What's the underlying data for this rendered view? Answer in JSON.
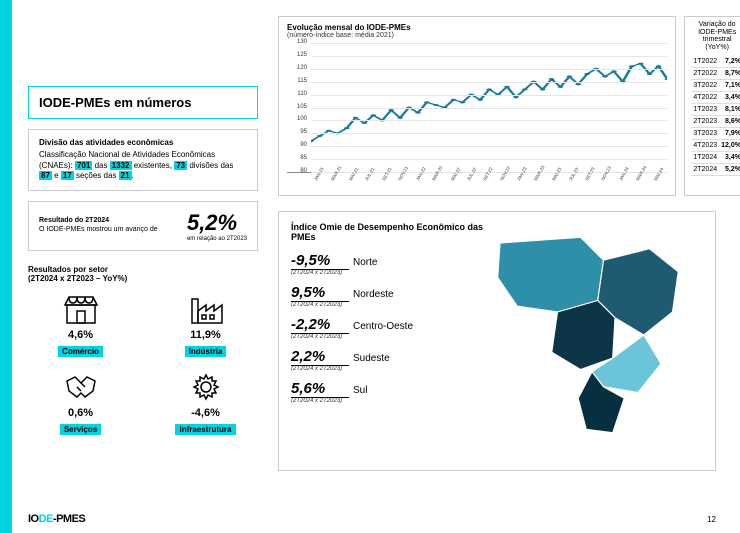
{
  "title": "IODE-PMEs em números",
  "desc": {
    "subtitle": "Divisão das atividades econômicas",
    "pre": "Classificação Nacional de Atividades Econômicas (CNAEs): ",
    "n1": "701",
    "mid1": " das ",
    "n2": "1332",
    "mid2": " existentes, ",
    "n3": "73",
    "mid3": " divisões das ",
    "n4": "87",
    "mid4": " e ",
    "n5": "17",
    "mid5": " seções das ",
    "n6": "21",
    "end": "."
  },
  "result": {
    "label": "Resultado do 2T2024",
    "text": "O IODE-PMEs mostrou um avanço de",
    "value": "5,2%",
    "sub": "em relação ao 2T2023"
  },
  "sectors": {
    "title": "Resultados por setor",
    "subtitle": "(2T2024 x 2T2023 – YoY%)",
    "items": [
      {
        "name": "Comércio",
        "value": "4,6%",
        "icon": "store"
      },
      {
        "name": "Indústria",
        "value": "11,9%",
        "icon": "factory"
      },
      {
        "name": "Serviços",
        "value": "0,6%",
        "icon": "handshake"
      },
      {
        "name": "Infraestrutura",
        "value": "-4,6%",
        "icon": "gear"
      }
    ]
  },
  "chart": {
    "title": "Evolução mensal do IODE-PMEs",
    "subtitle": "(número-índice base: média 2021)",
    "ylim": [
      80,
      130
    ],
    "ytick_step": 5,
    "line_color": "#1a7a9e",
    "marker_color": "#1a7a9e",
    "grid_color": "#e5e5e5",
    "x_labels": [
      "JAN.21",
      "MAR.21",
      "MAI.21",
      "JUL.21",
      "SET.21",
      "NOV.21",
      "JAN.22",
      "MAR.22",
      "MAI.22",
      "JUL.22",
      "SET.22",
      "NOV.22",
      "JAN.23",
      "MAR.23",
      "MAI.23",
      "JUL.23",
      "SET.23",
      "NOV.23",
      "JAN.24",
      "MAR.24",
      "MAI.24"
    ],
    "values": [
      92,
      94,
      96,
      95,
      97,
      101,
      99,
      102,
      100,
      104,
      101,
      105,
      103,
      107,
      106,
      105,
      108,
      107,
      110,
      108,
      112,
      110,
      113,
      109,
      112,
      115,
      112,
      116,
      113,
      117,
      114,
      118,
      120,
      117,
      119,
      115,
      121,
      122,
      118,
      121,
      116
    ]
  },
  "table": {
    "title": "Variação do IODE-PMEs trimestral (YoY%)",
    "rows": [
      {
        "q": "1T2022",
        "v": "7,2%"
      },
      {
        "q": "2T2022",
        "v": "8,7%"
      },
      {
        "q": "3T2022",
        "v": "7,1%"
      },
      {
        "q": "4T2022",
        "v": "3,4%"
      },
      {
        "q": "1T2023",
        "v": "8,1%"
      },
      {
        "q": "2T2023",
        "v": "8,6%"
      },
      {
        "q": "3T2023",
        "v": "7,9%"
      },
      {
        "q": "4T2023",
        "v": "12,0%"
      },
      {
        "q": "1T2024",
        "v": "3,4%"
      },
      {
        "q": "2T2024",
        "v": "5,2%"
      }
    ]
  },
  "map": {
    "title": "Índice Omie de Desempenho Econômico das PMEs",
    "period": "(2T2024 x 2T2023)",
    "regions": [
      {
        "name": "Norte",
        "value": "-9,5%"
      },
      {
        "name": "Nordeste",
        "value": "9,5%"
      },
      {
        "name": "Centro-Oeste",
        "value": "-2,2%"
      },
      {
        "name": "Sudeste",
        "value": "2,2%"
      },
      {
        "name": "Sul",
        "value": "5,6%"
      }
    ],
    "colors": {
      "norte": "#2d8fa8",
      "nordeste": "#1e5b73",
      "centro": "#0c3547",
      "sudeste": "#6bc5d9",
      "sul": "#063040"
    }
  },
  "footer": {
    "logo_pre": "IO",
    "logo_mid": "DE",
    "logo_post": "-PMES",
    "page": "12"
  }
}
